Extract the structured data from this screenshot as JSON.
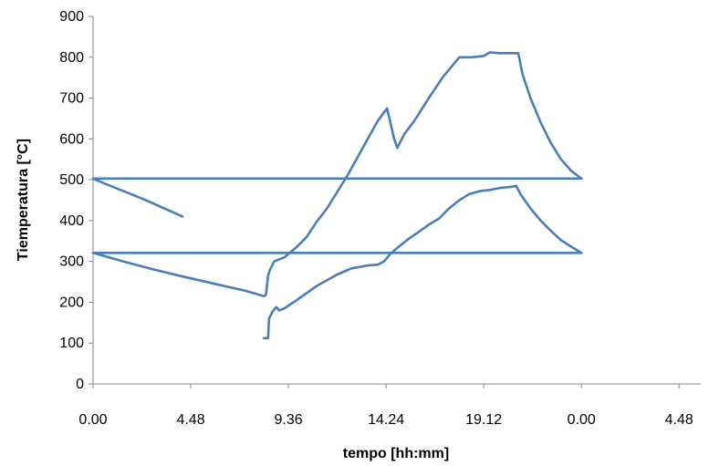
{
  "chart_data": {
    "type": "line",
    "title": "",
    "xlabel": "tempo [hh:mm]",
    "ylabel": "Tiemperatura [°C]",
    "x_unit": "hours",
    "xlim": [
      0,
      29.867
    ],
    "ylim": [
      0,
      900
    ],
    "x_tick_positions": [
      0,
      4.8,
      9.6,
      14.4,
      19.2,
      24.0,
      28.8
    ],
    "x_tick_labels": [
      "0.00",
      "4.48",
      "9.36",
      "14.24",
      "19.12",
      "0.00",
      "4.48"
    ],
    "y_ticks": [
      0,
      100,
      200,
      300,
      400,
      500,
      600,
      700,
      800,
      900
    ],
    "grid": false,
    "legend": "none",
    "line_color": "#4a7ebb",
    "series": [
      {
        "values": [
          [
            0,
            503
          ],
          [
            0.6,
            490
          ],
          [
            1.5,
            472
          ],
          [
            2.5,
            452
          ],
          [
            3.5,
            430
          ],
          [
            4.4,
            410
          ]
        ]
      },
      {
        "values": [
          [
            0,
            503
          ],
          [
            24.0,
            503
          ]
        ]
      },
      {
        "values": [
          [
            0,
            321
          ],
          [
            1.5,
            300
          ],
          [
            3.0,
            280
          ],
          [
            4.5,
            262
          ],
          [
            6.0,
            245
          ],
          [
            7.5,
            228
          ],
          [
            8.4,
            215
          ],
          [
            8.5,
            218
          ],
          [
            8.6,
            265
          ],
          [
            8.7,
            280
          ],
          [
            8.9,
            300
          ],
          [
            9.4,
            310
          ],
          [
            10.0,
            335
          ],
          [
            10.5,
            360
          ],
          [
            11.0,
            398
          ],
          [
            11.5,
            430
          ],
          [
            12.0,
            470
          ],
          [
            12.5,
            510
          ],
          [
            13.0,
            555
          ],
          [
            13.5,
            600
          ],
          [
            14.0,
            645
          ],
          [
            14.45,
            675
          ],
          [
            14.8,
            600
          ],
          [
            14.95,
            578
          ],
          [
            15.3,
            612
          ],
          [
            15.8,
            645
          ],
          [
            16.5,
            700
          ],
          [
            17.2,
            752
          ],
          [
            18.0,
            800
          ],
          [
            18.6,
            800
          ],
          [
            19.2,
            803
          ],
          [
            19.5,
            812
          ],
          [
            20.0,
            810
          ],
          [
            20.5,
            810
          ],
          [
            20.9,
            810
          ],
          [
            21.1,
            760
          ],
          [
            21.5,
            700
          ],
          [
            22.0,
            640
          ],
          [
            22.5,
            590
          ],
          [
            23.0,
            550
          ],
          [
            23.5,
            522
          ],
          [
            24.0,
            503
          ]
        ]
      },
      {
        "values": [
          [
            0,
            321
          ],
          [
            24.0,
            321
          ]
        ]
      },
      {
        "values": [
          [
            8.4,
            112
          ],
          [
            8.6,
            112
          ],
          [
            8.65,
            160
          ],
          [
            8.8,
            175
          ],
          [
            9.0,
            188
          ],
          [
            9.15,
            180
          ],
          [
            9.4,
            185
          ],
          [
            10.0,
            205
          ],
          [
            11.0,
            240
          ],
          [
            12.0,
            268
          ],
          [
            12.7,
            283
          ],
          [
            13.5,
            290
          ],
          [
            14.0,
            292
          ],
          [
            14.3,
            300
          ],
          [
            14.6,
            318
          ],
          [
            15.0,
            335
          ],
          [
            15.5,
            355
          ],
          [
            16.0,
            372
          ],
          [
            16.5,
            390
          ],
          [
            17.0,
            405
          ],
          [
            17.5,
            430
          ],
          [
            18.0,
            450
          ],
          [
            18.5,
            465
          ],
          [
            19.0,
            472
          ],
          [
            19.5,
            475
          ],
          [
            20.0,
            480
          ],
          [
            20.6,
            483
          ],
          [
            20.8,
            485
          ],
          [
            21.0,
            465
          ],
          [
            21.5,
            430
          ],
          [
            22.0,
            400
          ],
          [
            22.5,
            375
          ],
          [
            23.0,
            352
          ],
          [
            23.5,
            336
          ],
          [
            24.0,
            321
          ]
        ]
      }
    ]
  }
}
